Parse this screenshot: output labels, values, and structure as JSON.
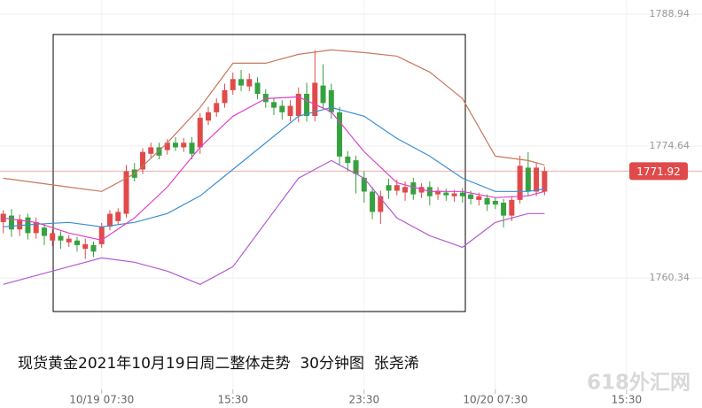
{
  "chart_data": {
    "type": "candlestick",
    "x": [
      0,
      1,
      2,
      3,
      4,
      5,
      6,
      7,
      8,
      9,
      10,
      11,
      12,
      13,
      14,
      15,
      16,
      17,
      18,
      19,
      20,
      21,
      22,
      23,
      24,
      25,
      26,
      27,
      28,
      29,
      30,
      31,
      32,
      33,
      34,
      35,
      36,
      37,
      38,
      39,
      40,
      41,
      42,
      43,
      44,
      45,
      46,
      47,
      48,
      49,
      50,
      51,
      52,
      53,
      54,
      55,
      56,
      57,
      58,
      59,
      60,
      61,
      62,
      63,
      64,
      65,
      66
    ],
    "open": [
      1766.4,
      1767.1,
      1765.6,
      1766.9,
      1765.2,
      1765.8,
      1764.4,
      1764.9,
      1764.2,
      1764.4,
      1763.5,
      1763.9,
      1764.0,
      1765.9,
      1766.5,
      1767.3,
      1772.1,
      1772.1,
      1773.8,
      1774.5,
      1774.2,
      1775.0,
      1774.5,
      1775.0,
      1774.5,
      1777.4,
      1778.3,
      1779.3,
      1780.7,
      1781.9,
      1781.1,
      1781.5,
      1780.3,
      1779.4,
      1779.0,
      1777.9,
      1777.9,
      1780.3,
      1777.9,
      1781.2,
      1780.7,
      1778.3,
      1773.5,
      1773.1,
      1771.2,
      1769.7,
      1767.5,
      1770.4,
      1769.8,
      1769.6,
      1770.7,
      1769.6,
      1770.2,
      1769.4,
      1769.6,
      1769.2,
      1769.6,
      1769.4,
      1768.8,
      1769.0,
      1768.7,
      1768.5,
      1767.1,
      1768.8,
      1772.3,
      1769.7,
      1769.7
    ],
    "close": [
      1767.3,
      1765.6,
      1766.7,
      1765.2,
      1766.4,
      1764.9,
      1765.2,
      1764.4,
      1764.6,
      1763.9,
      1764.0,
      1763.2,
      1765.9,
      1767.3,
      1767.5,
      1771.9,
      1771.2,
      1774.0,
      1774.5,
      1773.6,
      1775.0,
      1774.5,
      1775.0,
      1773.8,
      1777.7,
      1778.3,
      1779.3,
      1780.7,
      1781.9,
      1781.2,
      1781.9,
      1780.3,
      1779.4,
      1778.8,
      1778.3,
      1779.0,
      1780.3,
      1777.9,
      1781.5,
      1779.3,
      1778.3,
      1773.5,
      1772.8,
      1771.6,
      1769.7,
      1767.5,
      1769.2,
      1769.8,
      1770.4,
      1770.2,
      1769.4,
      1770.2,
      1769.2,
      1769.8,
      1769.3,
      1769.5,
      1769.2,
      1768.9,
      1769.2,
      1768.3,
      1768.3,
      1767.1,
      1768.8,
      1772.5,
      1769.7,
      1772.3,
      1771.92
    ],
    "high": [
      1767.7,
      1767.8,
      1767.2,
      1767.3,
      1766.9,
      1766.2,
      1765.6,
      1765.4,
      1765.0,
      1764.8,
      1764.6,
      1764.3,
      1766.3,
      1767.7,
      1767.9,
      1772.6,
      1772.8,
      1774.4,
      1775.0,
      1775.0,
      1775.4,
      1775.6,
      1775.5,
      1775.6,
      1778.2,
      1778.9,
      1779.8,
      1781.4,
      1782.6,
      1782.9,
      1782.5,
      1782.1,
      1780.8,
      1779.8,
      1779.6,
      1779.6,
      1781.0,
      1781.5,
      1785.0,
      1783.5,
      1781.4,
      1778.9,
      1774.1,
      1773.6,
      1771.9,
      1770.2,
      1769.8,
      1771.1,
      1771.0,
      1770.8,
      1771.2,
      1770.6,
      1770.8,
      1770.2,
      1770.0,
      1769.9,
      1770.1,
      1769.8,
      1769.6,
      1769.4,
      1769.1,
      1768.9,
      1769.2,
      1773.6,
      1774.0,
      1772.8,
      1772.4
    ],
    "low": [
      1765.2,
      1764.8,
      1764.9,
      1764.5,
      1764.6,
      1763.9,
      1763.8,
      1763.5,
      1763.7,
      1763.2,
      1762.4,
      1762.6,
      1763.6,
      1765.5,
      1766.1,
      1766.9,
      1770.8,
      1771.6,
      1773.3,
      1773.2,
      1773.7,
      1774.1,
      1774.0,
      1773.2,
      1773.8,
      1776.9,
      1777.8,
      1778.8,
      1780.2,
      1780.6,
      1780.6,
      1779.7,
      1778.8,
      1778.0,
      1777.5,
      1777.3,
      1777.2,
      1777.3,
      1777.3,
      1778.8,
      1777.6,
      1772.6,
      1771.9,
      1769.5,
      1768.5,
      1766.7,
      1766.2,
      1768.9,
      1769.3,
      1768.7,
      1768.8,
      1769.0,
      1768.2,
      1768.8,
      1768.7,
      1768.6,
      1768.5,
      1768.3,
      1768.2,
      1767.6,
      1767.8,
      1765.8,
      1766.5,
      1768.4,
      1769.2,
      1769.2,
      1769.3
    ],
    "up_color": "#e04a4a",
    "down_color": "#36a13f",
    "lines": [
      {
        "color": "#c8785a",
        "x": [
          0,
          4,
          8,
          12,
          16,
          20,
          24,
          28,
          32,
          36,
          40,
          44,
          48,
          52,
          56,
          60,
          64,
          66
        ],
        "values": [
          1771.15,
          1770.67,
          1770.19,
          1769.72,
          1771.63,
          1774.99,
          1778.82,
          1783.62,
          1783.62,
          1784.58,
          1785.06,
          1784.77,
          1784.39,
          1782.66,
          1779.78,
          1773.55,
          1773.07,
          1772.59
        ]
      },
      {
        "color": "#b45ad2",
        "x": [
          0,
          4,
          8,
          12,
          16,
          20,
          24,
          28,
          32,
          36,
          40,
          44,
          48,
          52,
          56,
          60,
          64,
          66
        ],
        "values": [
          1759.65,
          1760.61,
          1761.57,
          1762.52,
          1762.05,
          1761.09,
          1759.65,
          1761.57,
          1766.36,
          1771.15,
          1773.07,
          1771.15,
          1766.84,
          1764.92,
          1763.67,
          1766.36,
          1767.32,
          1767.32
        ]
      },
      {
        "color": "#3a8fd4",
        "x": [
          0,
          4,
          8,
          12,
          16,
          20,
          24,
          28,
          32,
          36,
          40,
          44,
          48,
          52,
          56,
          60,
          64,
          66
        ],
        "values": [
          1765.88,
          1766.17,
          1766.36,
          1765.88,
          1766.36,
          1767.32,
          1769.24,
          1772.11,
          1774.99,
          1777.87,
          1778.82,
          1777.87,
          1775.47,
          1773.55,
          1771.15,
          1769.72,
          1769.72,
          1770.0
        ]
      },
      {
        "color": "#e040c8",
        "x": [
          0,
          4,
          8,
          12,
          16,
          20,
          24,
          28,
          32,
          36,
          40,
          44,
          48,
          52,
          56,
          60,
          64,
          66
        ],
        "values": [
          1766.84,
          1766.36,
          1765.21,
          1764.44,
          1766.84,
          1770.19,
          1774.51,
          1777.87,
          1779.78,
          1779.97,
          1778.34,
          1774.03,
          1770.67,
          1769.72,
          1769.72,
          1769.05,
          1769.24,
          1769.72
        ]
      }
    ],
    "last_price": 1771.92,
    "last_price_color": "#e04a4a",
    "xlim": [
      -0.4,
      85.2
    ],
    "ylim": [
      1748.26,
      1790.47
    ],
    "yticks": [
      1760.34,
      1774.64,
      1788.94
    ],
    "xticks": [
      {
        "value": 12,
        "label": "10/19 07:30"
      },
      {
        "value": 28,
        "label": "15:30"
      },
      {
        "value": 44,
        "label": "23:30"
      },
      {
        "value": 60,
        "label": "10/20 07:30"
      },
      {
        "value": 76,
        "label": "15:30"
      }
    ],
    "grid": true,
    "caption": "现货黄金2021年10月19日周二整体走势  30分钟图  张尧浠",
    "watermark": "618外汇网"
  }
}
